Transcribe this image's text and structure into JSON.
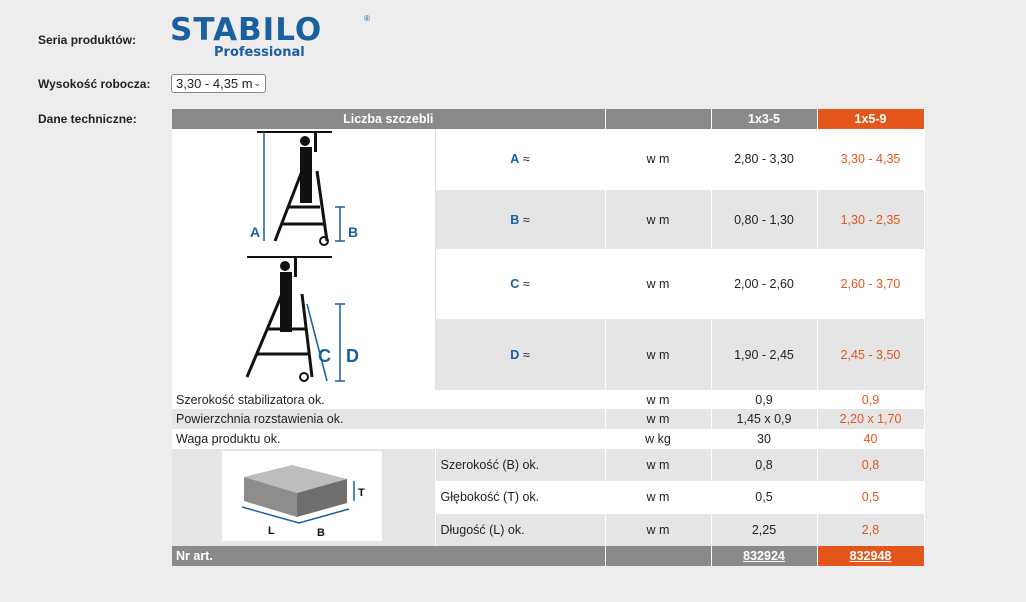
{
  "labels": {
    "series": "Seria produktów:",
    "height": "Wysokość robocza:",
    "tech": "Dane techniczne:"
  },
  "logo": {
    "brand": "STABILO",
    "sub": "Professional",
    "color": "#1a5fa0"
  },
  "select": {
    "value": "3,30 - 4,35 m"
  },
  "table": {
    "header": {
      "title": "Liczba szczebli",
      "col1": "1x3-5",
      "col2": "1x5-9"
    },
    "dims": [
      {
        "label": "A",
        "sym": "≈",
        "unit": "w m",
        "v1": "2,80 - 3,30",
        "v2": "3,30 - 4,35"
      },
      {
        "label": "B",
        "sym": "≈",
        "unit": "w m",
        "v1": "0,80 - 1,30",
        "v2": "1,30 - 2,35"
      },
      {
        "label": "C",
        "sym": "≈",
        "unit": "w m",
        "v1": "2,00 - 2,60",
        "v2": "2,60 - 3,70"
      },
      {
        "label": "D",
        "sym": "≈",
        "unit": "w m",
        "v1": "1,90 - 2,45",
        "v2": "2,45 - 3,50"
      }
    ],
    "rows": [
      {
        "label": "Szerokość stabilizatora ok.",
        "unit": "w m",
        "v1": "0,9",
        "v2": "0,9"
      },
      {
        "label": "Powierzchnia rozstawienia ok.",
        "unit": "w m",
        "v1": "1,45 x 0,9",
        "v2": "2,20 x 1,70"
      },
      {
        "label": "Waga produktu ok.",
        "unit": "w kg",
        "v1": "30",
        "v2": "40"
      }
    ],
    "pack": [
      {
        "label": "Szerokość (B) ok.",
        "unit": "w m",
        "v1": "0,8",
        "v2": "0,8"
      },
      {
        "label": "Głębokość (T) ok.",
        "unit": "w m",
        "v1": "0,5",
        "v2": "0,5"
      },
      {
        "label": "Długość (L) ok.",
        "unit": "w m",
        "v1": "2,25",
        "v2": "2,8"
      }
    ],
    "footer": {
      "label": "Nr art.",
      "a1": "832924",
      "a2": "832948"
    },
    "diagram_labels": {
      "a": "A",
      "b": "B",
      "c": "C",
      "d": "D",
      "l": "L",
      "bb": "B",
      "t": "T"
    }
  },
  "colors": {
    "accent": "#e4561c",
    "header": "#8a8a8a",
    "blue": "#1a5fa0"
  }
}
